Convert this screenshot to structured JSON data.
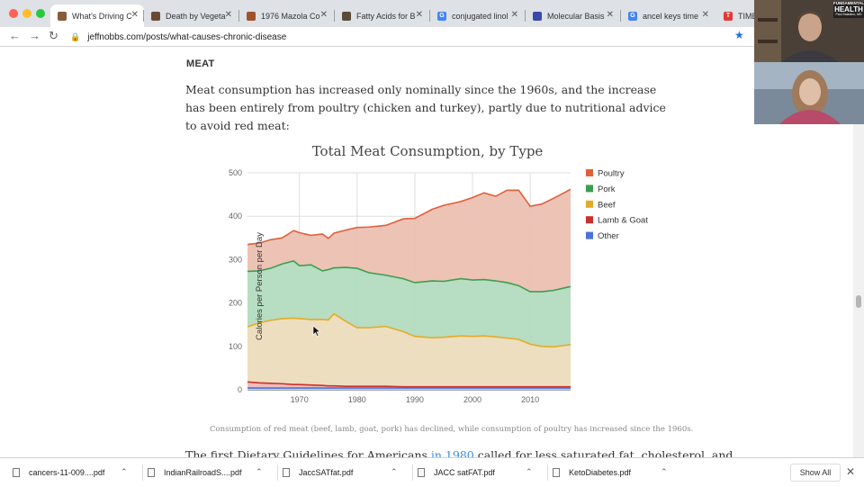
{
  "browser": {
    "tabs": [
      {
        "title": "What's Driving C",
        "icon": "portrait-favicon-icon",
        "color": "#8a5a3c",
        "glyph": ""
      },
      {
        "title": "Death by Vegeta",
        "icon": "portrait-favicon-icon",
        "color": "#6b4a33",
        "glyph": ""
      },
      {
        "title": "1976 Mazola Co",
        "icon": "image-favicon-icon",
        "color": "#a0522d",
        "glyph": ""
      },
      {
        "title": "Fatty Acids for B",
        "icon": "book-favicon-icon",
        "color": "#5a4a3a",
        "glyph": ""
      },
      {
        "title": "conjugated linol",
        "icon": "google-favicon-icon",
        "color": "#4285f4",
        "glyph": "G"
      },
      {
        "title": "Molecular Basis",
        "icon": "journal-favicon-icon",
        "color": "#3949ab",
        "glyph": ""
      },
      {
        "title": "ancel keys time",
        "icon": "google-favicon-icon",
        "color": "#4285f4",
        "glyph": "G"
      },
      {
        "title": "TIME",
        "icon": "time-favicon-icon",
        "color": "#e53935",
        "glyph": "T"
      }
    ],
    "url": "jeffnobbs.com/posts/what-causes-chronic-disease"
  },
  "article": {
    "heading": "MEAT",
    "paragraph": "Meat consumption has increased only nominally since the 1960s, and the increase has been entirely from poultry (chicken and turkey), partly due to nutritional advice to avoid red meat:",
    "caption": "Consumption of red meat (beef, lamb, goat, pork) has declined, while consumption of poultry has increased since the 1960s.",
    "cutoff_before": "The first Dietary Guidelines for Americans ",
    "cutoff_link": "in 1980",
    "cutoff_after": " called for less saturated fat, cholesterol, and"
  },
  "webcam": {
    "label_line1": "FUNDAMENTAL",
    "label_line2": "HEALTH",
    "label_line3": "Paul Saladino, MD"
  },
  "downloads": {
    "items": [
      "cancers-11-009....pdf",
      "IndianRailroadS....pdf",
      "JaccSATfat.pdf",
      "JACC satFAT.pdf",
      "KetoDiabetes.pdf"
    ],
    "show_all": "Show All"
  },
  "chart_data": {
    "type": "area",
    "stacked": true,
    "title": "Total Meat Consumption, by Type",
    "xlabel": "",
    "ylabel": "Calories per Person per Day",
    "xlim": [
      1961,
      2017
    ],
    "ylim": [
      0,
      500
    ],
    "yticks": [
      0,
      100,
      200,
      300,
      400,
      500
    ],
    "xticks": [
      1970,
      1980,
      1990,
      2000,
      2010
    ],
    "grid": true,
    "legend": "right",
    "x": [
      1961,
      1963,
      1965,
      1967,
      1969,
      1970,
      1972,
      1974,
      1975,
      1976,
      1978,
      1980,
      1982,
      1985,
      1988,
      1990,
      1993,
      1995,
      1998,
      2000,
      2002,
      2004,
      2006,
      2008,
      2010,
      2012,
      2014,
      2017
    ],
    "series": [
      {
        "name": "Other",
        "color": "#4a72d9",
        "values": [
          4,
          4,
          4,
          4,
          4,
          4,
          4,
          4,
          4,
          4,
          4,
          4,
          4,
          4,
          4,
          4,
          4,
          4,
          4,
          4,
          4,
          4,
          4,
          4,
          4,
          4,
          4,
          4
        ]
      },
      {
        "name": "Lamb & Goat",
        "color": "#c9302c",
        "values": [
          14,
          12,
          11,
          10,
          8,
          8,
          7,
          6,
          5,
          5,
          4,
          4,
          4,
          4,
          3,
          3,
          3,
          3,
          3,
          3,
          3,
          3,
          3,
          3,
          3,
          3,
          3,
          3
        ]
      },
      {
        "name": "Beef",
        "color": "#e3ac27",
        "values": [
          127,
          138,
          145,
          150,
          153,
          152,
          151,
          152,
          152,
          166,
          150,
          135,
          135,
          138,
          127,
          116,
          113,
          114,
          117,
          116,
          117,
          115,
          112,
          109,
          98,
          93,
          92,
          97
        ]
      },
      {
        "name": "Pork",
        "color": "#3d9e4f",
        "values": [
          128,
          120,
          120,
          126,
          132,
          122,
          126,
          112,
          116,
          106,
          124,
          137,
          127,
          118,
          122,
          124,
          131,
          129,
          132,
          130,
          130,
          129,
          128,
          124,
          121,
          126,
          130,
          134
        ]
      },
      {
        "name": "Poultry",
        "color": "#e0603a",
        "values": [
          62,
          64,
          66,
          60,
          70,
          76,
          68,
          85,
          72,
          80,
          86,
          94,
          105,
          115,
          138,
          148,
          165,
          175,
          178,
          190,
          200,
          195,
          213,
          220,
          197,
          202,
          212,
          224
        ]
      }
    ]
  }
}
